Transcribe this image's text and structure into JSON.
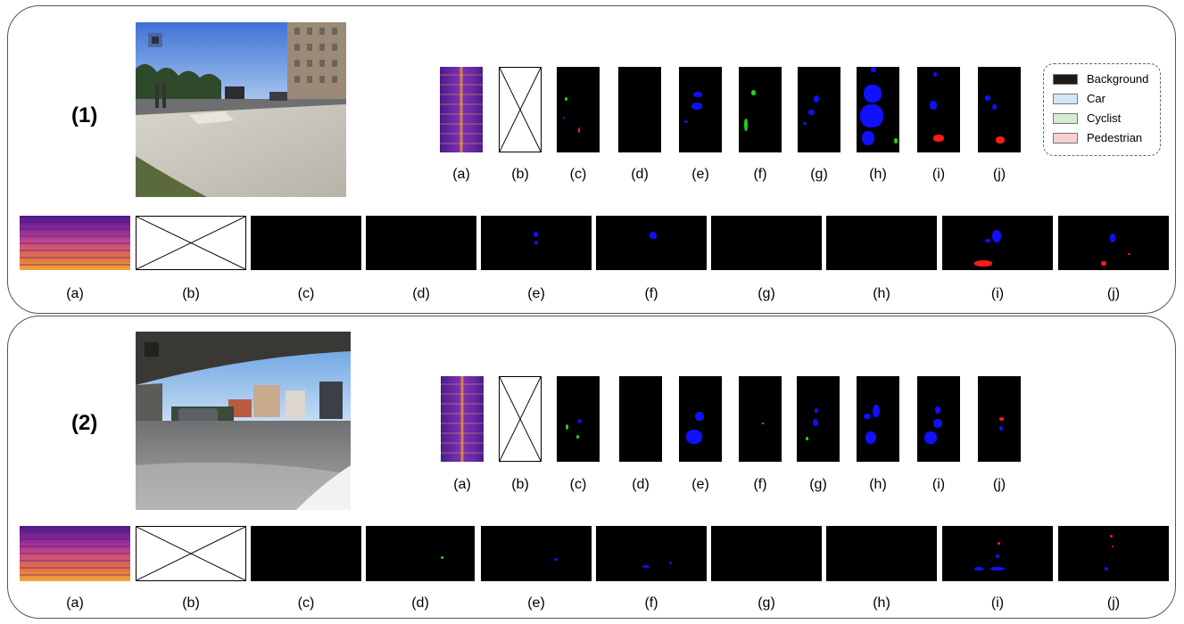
{
  "panels": [
    {
      "label": "(1)"
    },
    {
      "label": "(2)"
    }
  ],
  "subfigure_labels": [
    "(a)",
    "(b)",
    "(c)",
    "(d)",
    "(e)",
    "(f)",
    "(g)",
    "(h)",
    "(i)",
    "(j)"
  ],
  "legend": {
    "items": [
      {
        "label": "Background",
        "color": "#1a1a1a"
      },
      {
        "label": "Car",
        "color": "#d6e6f7"
      },
      {
        "label": "Cyclist",
        "color": "#d4ead3"
      },
      {
        "label": "Pedestrian",
        "color": "#f7d1d1"
      }
    ]
  },
  "segmentation_colors": {
    "car": "#1010ff",
    "cyclist": "#19d419",
    "pedestrian": "#ff1a1a"
  }
}
